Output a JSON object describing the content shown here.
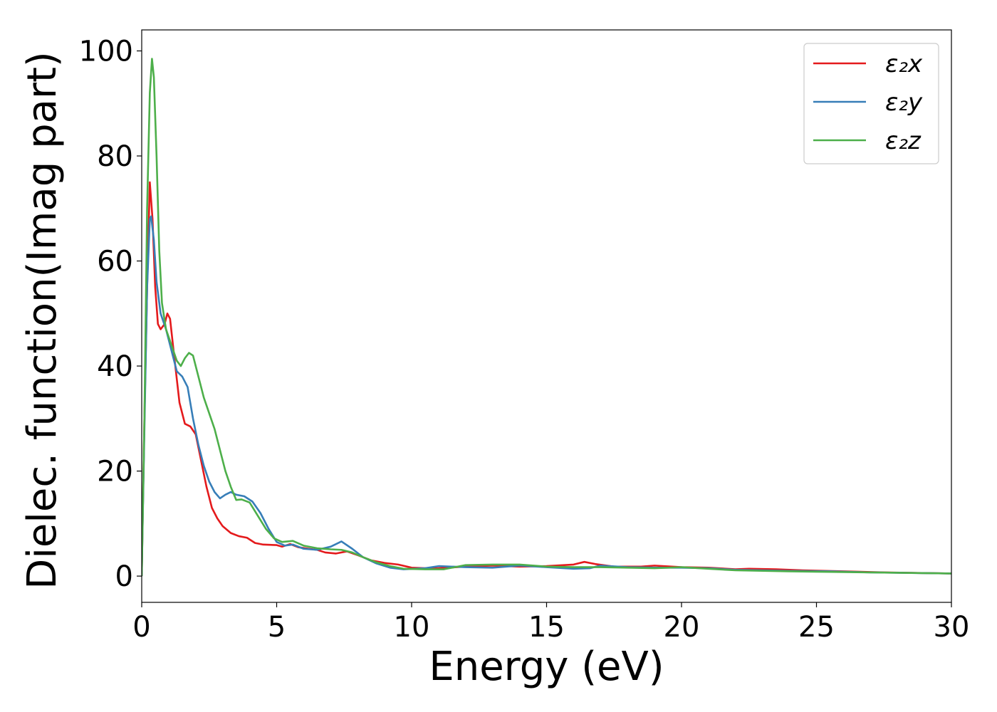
{
  "chart_data": {
    "type": "line",
    "title": "",
    "xlabel": "Energy (eV)",
    "ylabel": "Dielec. function(Imag part)",
    "xlim": [
      0,
      30
    ],
    "ylim": [
      -5,
      104
    ],
    "xticks": [
      0,
      5,
      10,
      15,
      20,
      25,
      30
    ],
    "yticks": [
      0,
      20,
      40,
      60,
      80,
      100
    ],
    "grid": false,
    "legend_position": "top-right",
    "series": [
      {
        "name": "ε₂x",
        "color": "#e41a1c",
        "points": [
          [
            0,
            0
          ],
          [
            0.1,
            30
          ],
          [
            0.2,
            55
          ],
          [
            0.3,
            75
          ],
          [
            0.4,
            68
          ],
          [
            0.5,
            55
          ],
          [
            0.6,
            48
          ],
          [
            0.7,
            47
          ],
          [
            0.85,
            48
          ],
          [
            0.95,
            50
          ],
          [
            1.05,
            49
          ],
          [
            1.2,
            42
          ],
          [
            1.4,
            33
          ],
          [
            1.6,
            29
          ],
          [
            1.8,
            28.5
          ],
          [
            2.0,
            27
          ],
          [
            2.2,
            22
          ],
          [
            2.4,
            17
          ],
          [
            2.6,
            13
          ],
          [
            2.8,
            11
          ],
          [
            3.0,
            9.5
          ],
          [
            3.3,
            8.2
          ],
          [
            3.6,
            7.6
          ],
          [
            3.9,
            7.3
          ],
          [
            4.2,
            6.3
          ],
          [
            4.5,
            6.0
          ],
          [
            5.0,
            5.9
          ],
          [
            5.2,
            5.6
          ],
          [
            5.5,
            6.1
          ],
          [
            5.8,
            5.5
          ],
          [
            6.2,
            5.2
          ],
          [
            6.5,
            5.0
          ],
          [
            6.8,
            4.5
          ],
          [
            7.2,
            4.3
          ],
          [
            7.6,
            4.7
          ],
          [
            8.0,
            4.0
          ],
          [
            8.5,
            3.0
          ],
          [
            9.0,
            2.5
          ],
          [
            9.5,
            2.2
          ],
          [
            10.0,
            1.6
          ],
          [
            10.5,
            1.5
          ],
          [
            11.0,
            1.5
          ],
          [
            12.0,
            1.8
          ],
          [
            13.0,
            2.0
          ],
          [
            14.0,
            1.8
          ],
          [
            15.0,
            1.9
          ],
          [
            16.0,
            2.2
          ],
          [
            16.4,
            2.7
          ],
          [
            16.8,
            2.3
          ],
          [
            17.5,
            1.8
          ],
          [
            18.5,
            1.8
          ],
          [
            19.0,
            2.0
          ],
          [
            20.0,
            1.7
          ],
          [
            21.0,
            1.6
          ],
          [
            22.0,
            1.3
          ],
          [
            22.5,
            1.4
          ],
          [
            23.5,
            1.3
          ],
          [
            24.5,
            1.1
          ],
          [
            26.0,
            0.9
          ],
          [
            27.5,
            0.7
          ],
          [
            30.0,
            0.5
          ]
        ]
      },
      {
        "name": "ε₂y",
        "color": "#377eb8",
        "points": [
          [
            0,
            0
          ],
          [
            0.1,
            28
          ],
          [
            0.2,
            55
          ],
          [
            0.3,
            68
          ],
          [
            0.35,
            68.5
          ],
          [
            0.45,
            64
          ],
          [
            0.55,
            56
          ],
          [
            0.7,
            50
          ],
          [
            0.9,
            47
          ],
          [
            1.1,
            43
          ],
          [
            1.3,
            39
          ],
          [
            1.5,
            38
          ],
          [
            1.7,
            36
          ],
          [
            1.9,
            30
          ],
          [
            2.1,
            25
          ],
          [
            2.3,
            21
          ],
          [
            2.5,
            18
          ],
          [
            2.7,
            16
          ],
          [
            2.9,
            14.8
          ],
          [
            3.1,
            15.5
          ],
          [
            3.3,
            16
          ],
          [
            3.5,
            15.5
          ],
          [
            3.8,
            15.2
          ],
          [
            4.1,
            14.2
          ],
          [
            4.4,
            12
          ],
          [
            4.7,
            9
          ],
          [
            5.0,
            6.5
          ],
          [
            5.3,
            5.8
          ],
          [
            5.6,
            6.0
          ],
          [
            6.0,
            5.2
          ],
          [
            6.5,
            5.0
          ],
          [
            7.0,
            5.6
          ],
          [
            7.4,
            6.6
          ],
          [
            7.8,
            5.2
          ],
          [
            8.2,
            3.6
          ],
          [
            8.7,
            2.4
          ],
          [
            9.2,
            1.6
          ],
          [
            9.7,
            1.3
          ],
          [
            10.5,
            1.5
          ],
          [
            11.0,
            1.9
          ],
          [
            12.0,
            1.7
          ],
          [
            13.0,
            1.6
          ],
          [
            14.0,
            2.0
          ],
          [
            15.0,
            1.7
          ],
          [
            16.0,
            1.4
          ],
          [
            16.6,
            1.5
          ],
          [
            17.0,
            2.0
          ],
          [
            18.0,
            1.7
          ],
          [
            19.0,
            1.6
          ],
          [
            20.0,
            1.6
          ],
          [
            21.0,
            1.5
          ],
          [
            22.0,
            1.2
          ],
          [
            23.0,
            1.1
          ],
          [
            24.0,
            1.0
          ],
          [
            25.5,
            0.9
          ],
          [
            27.0,
            0.7
          ],
          [
            30.0,
            0.5
          ]
        ]
      },
      {
        "name": "ε₂z",
        "color": "#4daf4a",
        "points": [
          [
            0,
            0
          ],
          [
            0.1,
            30
          ],
          [
            0.2,
            70
          ],
          [
            0.3,
            92
          ],
          [
            0.38,
            98.5
          ],
          [
            0.45,
            95
          ],
          [
            0.55,
            80
          ],
          [
            0.65,
            62
          ],
          [
            0.75,
            52
          ],
          [
            0.9,
            47
          ],
          [
            1.1,
            44
          ],
          [
            1.3,
            41
          ],
          [
            1.45,
            40
          ],
          [
            1.6,
            41.5
          ],
          [
            1.75,
            42.5
          ],
          [
            1.9,
            42
          ],
          [
            2.1,
            38
          ],
          [
            2.3,
            34
          ],
          [
            2.5,
            31
          ],
          [
            2.7,
            28
          ],
          [
            2.9,
            24
          ],
          [
            3.1,
            20
          ],
          [
            3.3,
            17
          ],
          [
            3.5,
            14.5
          ],
          [
            3.7,
            14.6
          ],
          [
            4.0,
            14.0
          ],
          [
            4.3,
            11.5
          ],
          [
            4.6,
            9.0
          ],
          [
            4.9,
            7.2
          ],
          [
            5.2,
            6.5
          ],
          [
            5.6,
            6.7
          ],
          [
            6.0,
            5.8
          ],
          [
            6.5,
            5.3
          ],
          [
            7.0,
            5.1
          ],
          [
            7.4,
            5.0
          ],
          [
            7.8,
            4.5
          ],
          [
            8.2,
            3.6
          ],
          [
            8.7,
            2.6
          ],
          [
            9.2,
            1.9
          ],
          [
            9.7,
            1.4
          ],
          [
            10.5,
            1.3
          ],
          [
            11.2,
            1.3
          ],
          [
            12.0,
            2.1
          ],
          [
            13.0,
            2.2
          ],
          [
            14.0,
            2.2
          ],
          [
            15.0,
            1.8
          ],
          [
            16.0,
            1.7
          ],
          [
            17.0,
            1.7
          ],
          [
            18.0,
            1.6
          ],
          [
            19.0,
            1.5
          ],
          [
            20.0,
            1.7
          ],
          [
            21.0,
            1.4
          ],
          [
            22.0,
            1.1
          ],
          [
            23.0,
            1.0
          ],
          [
            24.0,
            0.9
          ],
          [
            25.5,
            0.8
          ],
          [
            27.0,
            0.7
          ],
          [
            30.0,
            0.5
          ]
        ]
      }
    ]
  }
}
